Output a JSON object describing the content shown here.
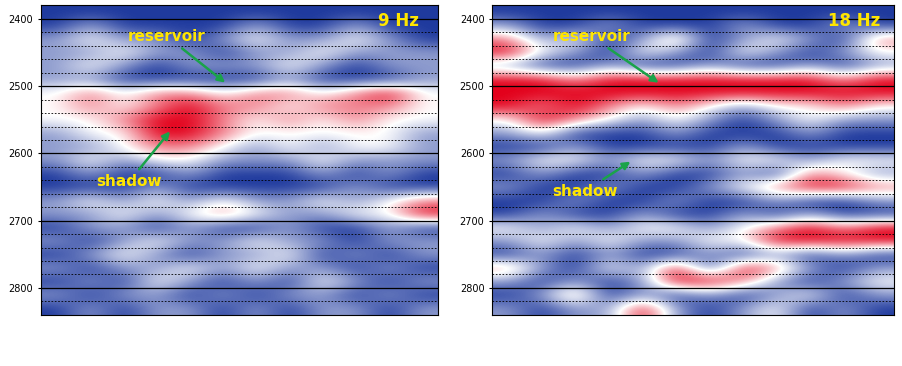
{
  "chart_data": [
    {
      "type": "heatmap",
      "title": "9 Hz",
      "annotations": [
        "reservoir",
        "shadow"
      ],
      "y": [
        2390,
        2410,
        2430,
        2450,
        2470,
        2490,
        2510,
        2530,
        2550,
        2570,
        2590,
        2610,
        2630,
        2650,
        2670,
        2690,
        2710,
        2730,
        2750,
        2770,
        2790,
        2810,
        2830
      ],
      "cells": [
        [
          -2,
          -2,
          -2,
          -2,
          -2,
          -2,
          -2,
          -2,
          -2,
          -2,
          -2,
          -2
        ],
        [
          -2,
          -1,
          -2,
          -2,
          -2,
          -2,
          -1,
          -2,
          -2,
          -1,
          -2,
          -2
        ],
        [
          -1,
          0,
          -1,
          -1,
          -2,
          -1,
          0,
          -1,
          -1,
          0,
          -1,
          -2
        ],
        [
          -1,
          -1,
          0,
          -1,
          -1,
          -2,
          -1,
          -1,
          0,
          -1,
          -1,
          -1
        ],
        [
          -1,
          0,
          -1,
          -2,
          -1,
          -1,
          -1,
          0,
          -1,
          -2,
          -1,
          -1
        ],
        [
          -1,
          -1,
          -2,
          -2,
          -2,
          -2,
          -2,
          -1,
          -2,
          -2,
          -2,
          -1
        ],
        [
          0,
          1,
          0,
          1,
          1,
          0,
          1,
          1,
          0,
          1,
          2,
          0
        ],
        [
          0,
          1,
          0,
          1,
          2,
          1,
          1,
          0,
          1,
          1,
          1,
          0
        ],
        [
          0,
          0,
          1,
          2,
          2,
          1,
          0,
          1,
          0,
          1,
          0,
          0
        ],
        [
          -1,
          0,
          0,
          2,
          2,
          1,
          0,
          0,
          0,
          0,
          0,
          -1
        ],
        [
          -1,
          -1,
          0,
          1,
          1,
          0,
          -1,
          0,
          -1,
          0,
          0,
          -1
        ],
        [
          -1,
          0,
          -1,
          0,
          0,
          -1,
          -1,
          -1,
          0,
          -1,
          -1,
          -1
        ],
        [
          -2,
          -1,
          -2,
          -2,
          -1,
          -2,
          -2,
          -2,
          -1,
          -2,
          -1,
          -2
        ],
        [
          -2,
          -2,
          -2,
          -1,
          -2,
          -2,
          -2,
          -2,
          -2,
          -1,
          -2,
          -2
        ],
        [
          -1,
          0,
          -1,
          0,
          -1,
          0,
          -1,
          -1,
          0,
          -1,
          0,
          1
        ],
        [
          -1,
          -1,
          0,
          -1,
          0,
          1,
          0,
          -1,
          -1,
          0,
          0,
          2
        ],
        [
          -2,
          -1,
          -1,
          -2,
          -1,
          -2,
          -2,
          -1,
          -2,
          -2,
          -1,
          -2
        ],
        [
          -1,
          -2,
          -1,
          0,
          -1,
          -1,
          0,
          -1,
          -1,
          -2,
          -1,
          -1
        ],
        [
          -2,
          -1,
          0,
          -1,
          -2,
          -1,
          -1,
          0,
          -2,
          -1,
          -2,
          -1
        ],
        [
          -1,
          -2,
          -1,
          -1,
          0,
          -1,
          0,
          -1,
          -1,
          -2,
          -1,
          -2
        ],
        [
          -2,
          -1,
          -2,
          0,
          -1,
          -2,
          -1,
          -2,
          0,
          -1,
          -2,
          -1
        ],
        [
          -1,
          -2,
          -1,
          -1,
          -2,
          -1,
          -2,
          -1,
          -1,
          -2,
          -1,
          -2
        ],
        [
          -2,
          -1,
          -2,
          -1,
          -1,
          -2,
          -1,
          -2,
          -1,
          -1,
          -2,
          -1
        ]
      ],
      "color_range": [
        -2,
        2
      ],
      "colors": [
        "#1f3a9e",
        "#ffffff",
        "#e3001b"
      ],
      "ylim": [
        2380,
        2840
      ],
      "yticks": [
        2400,
        2500,
        2600,
        2700,
        2800
      ],
      "grid": true,
      "tick_labels": "y"
    },
    {
      "type": "heatmap",
      "title": "18 Hz",
      "annotations": [
        "reservoir",
        "shadow"
      ],
      "y": [
        2390,
        2410,
        2430,
        2450,
        2470,
        2490,
        2510,
        2530,
        2550,
        2570,
        2590,
        2610,
        2630,
        2650,
        2670,
        2690,
        2710,
        2730,
        2750,
        2770,
        2790,
        2810,
        2830
      ],
      "cells": [
        [
          -2,
          -2,
          -2,
          -2,
          -2,
          -2,
          -2,
          -2,
          -2,
          -2,
          -2,
          -2
        ],
        [
          -1,
          -2,
          -2,
          -1,
          -2,
          -2,
          -2,
          -1,
          -2,
          -2,
          -1,
          -2
        ],
        [
          1,
          -1,
          0,
          -2,
          -1,
          1,
          -2,
          -1,
          0,
          -1,
          -2,
          1
        ],
        [
          2,
          0,
          -1,
          -2,
          0,
          -1,
          -2,
          0,
          -1,
          -2,
          -1,
          0
        ],
        [
          -1,
          -2,
          -2,
          -1,
          -2,
          -2,
          -1,
          -2,
          -2,
          -1,
          -2,
          -1
        ],
        [
          2,
          2,
          1,
          2,
          2,
          2,
          2,
          2,
          2,
          2,
          1,
          2
        ],
        [
          2,
          2,
          2,
          2,
          2,
          2,
          2,
          2,
          2,
          2,
          2,
          2
        ],
        [
          2,
          1,
          2,
          1,
          0,
          1,
          0,
          -1,
          0,
          0,
          1,
          0
        ],
        [
          0,
          2,
          1,
          0,
          -1,
          0,
          -1,
          -2,
          -1,
          0,
          -1,
          -1
        ],
        [
          -1,
          0,
          -2,
          -2,
          -2,
          -1,
          -2,
          -2,
          -2,
          -1,
          -2,
          -2
        ],
        [
          -2,
          -2,
          -1,
          -2,
          -2,
          -2,
          -2,
          -1,
          -2,
          -2,
          -2,
          -2
        ],
        [
          -1,
          0,
          0,
          -1,
          0,
          0,
          -1,
          0,
          0,
          -1,
          0,
          0
        ],
        [
          -2,
          -1,
          -2,
          -2,
          -1,
          -2,
          -2,
          -1,
          -2,
          1,
          0,
          -1
        ],
        [
          -1,
          -2,
          -2,
          -1,
          -2,
          -2,
          -1,
          0,
          1,
          2,
          2,
          1
        ],
        [
          -2,
          -2,
          -1,
          -2,
          -2,
          -1,
          -2,
          -2,
          -1,
          -2,
          -2,
          -1
        ],
        [
          -2,
          -1,
          -2,
          -2,
          -1,
          -2,
          -2,
          -1,
          -2,
          -1,
          -2,
          -2
        ],
        [
          0,
          -1,
          0,
          -1,
          0,
          0,
          -1,
          0,
          1,
          2,
          1,
          2
        ],
        [
          -1,
          0,
          -1,
          0,
          -1,
          -1,
          0,
          0,
          2,
          2,
          2,
          2
        ],
        [
          -2,
          -1,
          -2,
          -1,
          -2,
          -2,
          -1,
          -2,
          -1,
          -2,
          -1,
          -2
        ],
        [
          1,
          -1,
          -2,
          0,
          -1,
          2,
          -2,
          2,
          1,
          -1,
          -2,
          -1
        ],
        [
          -1,
          -2,
          -1,
          -2,
          -1,
          2,
          2,
          1,
          -1,
          -2,
          -1,
          0
        ],
        [
          -2,
          -1,
          1,
          -2,
          -1,
          -2,
          -1,
          -2,
          -1,
          0,
          -2,
          -1
        ],
        [
          -1,
          -2,
          -1,
          -1,
          2,
          -1,
          -2,
          -1,
          0,
          -2,
          -1,
          -2
        ]
      ],
      "color_range": [
        -2,
        2
      ],
      "colors": [
        "#1f3a9e",
        "#ffffff",
        "#e3001b"
      ],
      "ylim": [
        2380,
        2840
      ],
      "yticks": [
        2400,
        2500,
        2600,
        2700,
        2800
      ],
      "grid": true,
      "tick_labels": "y"
    }
  ]
}
